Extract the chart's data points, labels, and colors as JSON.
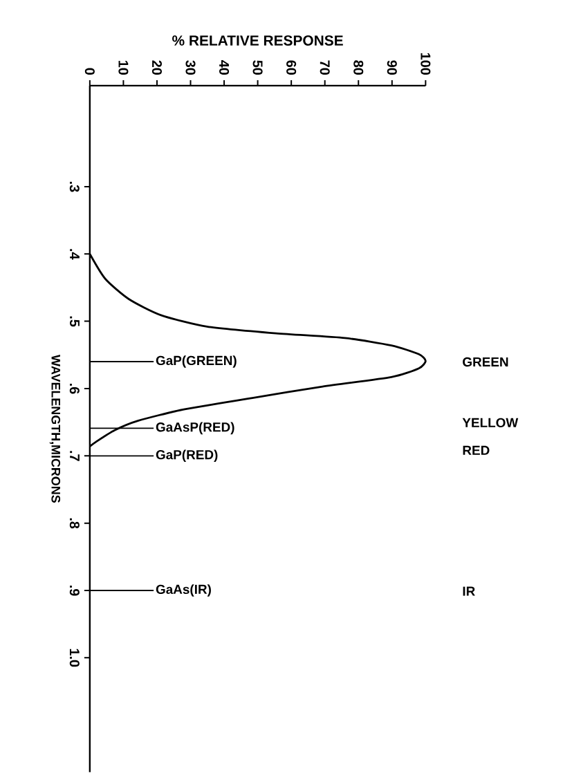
{
  "chart_data": {
    "type": "line",
    "xlabel": "% RELATIVE RESPONSE",
    "ylabel": "WAVELENGTH,MICRONS",
    "x": [
      0,
      4.6,
      11.6,
      21.2,
      34.9,
      55.5,
      76,
      89.8,
      98,
      100,
      98,
      89.8,
      69.3,
      48.4,
      28,
      14.3,
      7.4,
      1.9,
      0
    ],
    "series": [
      {
        "color": "#000000",
        "values": [
          0.4,
          0.437,
          0.467,
          0.491,
          0.508,
          0.518,
          0.525,
          0.536,
          0.549,
          0.559,
          0.57,
          0.583,
          0.597,
          0.614,
          0.631,
          0.648,
          0.662,
          0.679,
          0.686
        ]
      }
    ],
    "xlim": [
      0,
      100
    ],
    "xticks": [
      0,
      10,
      20,
      30,
      40,
      50,
      60,
      70,
      80,
      90,
      100
    ],
    "ylim": [
      1.17,
      0.15
    ],
    "yticks": [
      {
        "value": 0.3,
        "label": ".3"
      },
      {
        "value": 0.4,
        "label": ".4"
      },
      {
        "value": 0.5,
        "label": ".5"
      },
      {
        "value": 0.6,
        "label": ".6"
      },
      {
        "value": 0.7,
        "label": ".7"
      },
      {
        "value": 0.8,
        "label": ".8"
      },
      {
        "value": 0.9,
        "label": ".9"
      },
      {
        "value": 1.0,
        "label": "1.0"
      }
    ],
    "ref_lines": [
      {
        "axis": "y",
        "value": 0.56,
        "label": "GaP(GREEN)"
      },
      {
        "axis": "y",
        "value": 0.659,
        "label": "GaAsP(RED)"
      },
      {
        "axis": "y",
        "value": 0.7,
        "label": "GaP(RED)"
      },
      {
        "axis": "y",
        "value": 0.9,
        "label": "GaAs(IR)"
      }
    ],
    "annotations": [
      "GREEN",
      "YELLOW",
      "RED",
      "IR"
    ]
  }
}
